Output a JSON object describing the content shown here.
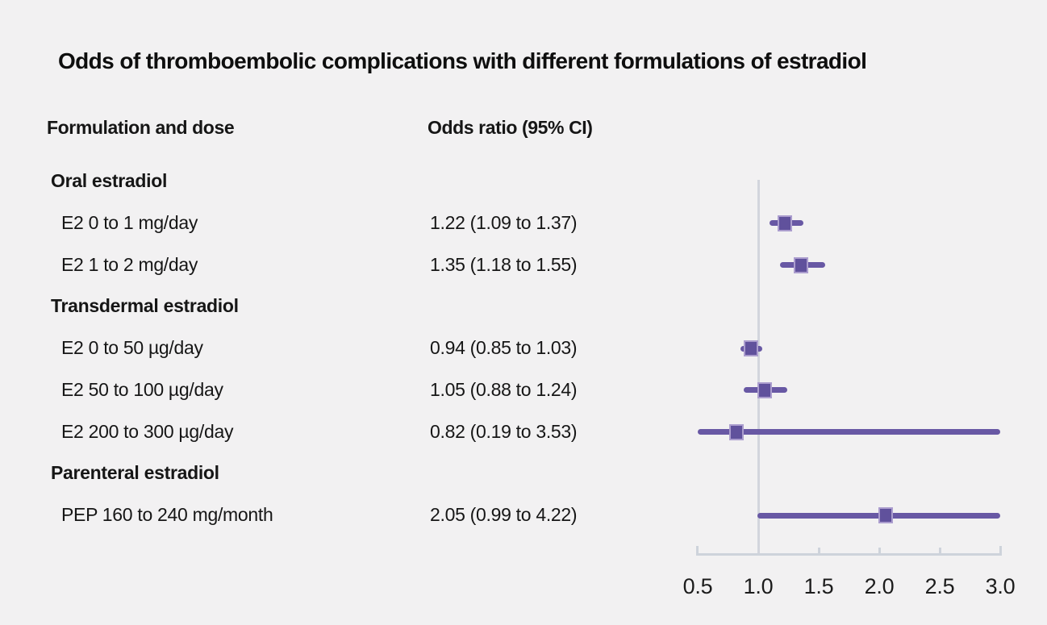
{
  "title": "Odds of thromboembolic complications with different formulations of estradiol",
  "columns": {
    "formulation": "Formulation and dose",
    "odds": "Odds ratio (95% CI)"
  },
  "colors": {
    "background": "#f2f1f2",
    "text": "#161616",
    "marker_fill": "#60519c",
    "marker_border": "#ab9dce",
    "ci_line": "#6858a4",
    "axis": "#ced3db",
    "reference_line": "#d2d5dd"
  },
  "chart_data": {
    "type": "forest",
    "title": "Odds of thromboembolic complications with different formulations of estradiol",
    "xlabel": "",
    "xlim": [
      0.5,
      3.0
    ],
    "reference_line": 1.0,
    "tick_values": [
      0.5,
      1.0,
      1.5,
      2.0,
      2.5,
      3.0
    ],
    "tick_labels": [
      "0.5",
      "1.0",
      "1.5",
      "2.0",
      "2.5",
      "3.0"
    ],
    "legend": "none",
    "grid": false,
    "rows": [
      {
        "kind": "group",
        "label": "Oral estradiol"
      },
      {
        "kind": "item",
        "label": "E2 0 to 1 mg/day",
        "display": "1.22 (1.09 to 1.37)",
        "or": 1.22,
        "lo": 1.09,
        "hi": 1.37
      },
      {
        "kind": "item",
        "label": "E2 1 to 2 mg/day",
        "display": "1.35 (1.18 to 1.55)",
        "or": 1.35,
        "lo": 1.18,
        "hi": 1.55
      },
      {
        "kind": "group",
        "label": "Transdermal estradiol"
      },
      {
        "kind": "item",
        "label": "E2 0 to 50 µg/day",
        "display": "0.94 (0.85 to 1.03)",
        "or": 0.94,
        "lo": 0.85,
        "hi": 1.03
      },
      {
        "kind": "item",
        "label": "E2 50 to 100 µg/day",
        "display": "1.05 (0.88 to 1.24)",
        "or": 1.05,
        "lo": 0.88,
        "hi": 1.24
      },
      {
        "kind": "item",
        "label": "E2 200 to 300 µg/day",
        "display": "0.82 (0.19 to 3.53)",
        "or": 0.82,
        "lo": 0.19,
        "hi": 3.53
      },
      {
        "kind": "group",
        "label": "Parenteral estradiol"
      },
      {
        "kind": "item",
        "label": "PEP 160 to 240 mg/month",
        "display": "2.05 (0.99 to 4.22)",
        "or": 2.05,
        "lo": 0.99,
        "hi": 4.22
      }
    ]
  }
}
